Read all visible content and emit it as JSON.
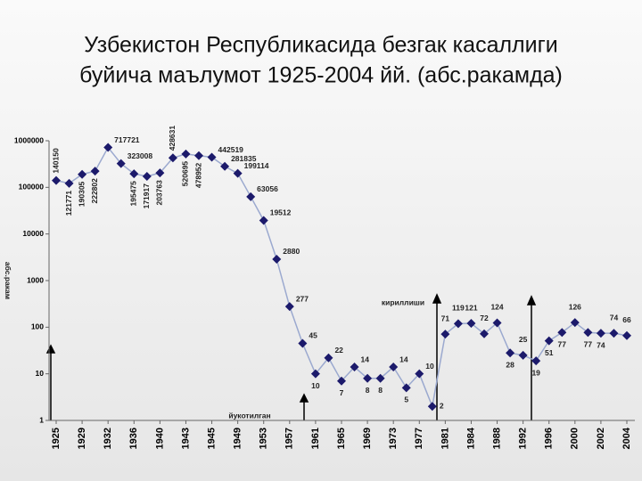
{
  "chart_data": {
    "type": "line",
    "title": "Узбекистон Республикасида безгак касаллиги",
    "subtitle": "буйича  маълумот 1925-2004 йй.  (абс.ракамда)",
    "y_label": "абс.ракам",
    "annotations": [
      "кириллиши",
      "йукотилган"
    ],
    "categories": [
      "1925",
      null,
      "1929",
      null,
      "1932",
      null,
      "1936",
      null,
      "1940",
      null,
      "1943",
      null,
      "1945",
      null,
      "1949",
      null,
      "1953",
      null,
      "1957",
      null,
      "1961",
      null,
      "1965",
      null,
      "1969",
      null,
      "1973",
      null,
      "1977",
      null,
      "1981",
      null,
      "1984",
      null,
      "1988",
      null,
      "1992",
      null,
      "1996",
      null,
      "2000",
      null,
      "2002",
      null,
      "2004"
    ],
    "series": [
      {
        "name": "безгак",
        "color": "#1c1a6b",
        "line_color": "#9ba9cf",
        "values": [
          140150,
          121771,
          190305,
          222802,
          717721,
          323008,
          195475,
          171917,
          203763,
          428631,
          520695,
          478952,
          442519,
          281835,
          199114,
          63056,
          19512,
          2880,
          277,
          45,
          10,
          22,
          7,
          14,
          8,
          8,
          14,
          5,
          10,
          2,
          71,
          119,
          121,
          72,
          124,
          28,
          25,
          19,
          51,
          77,
          126,
          77,
          74,
          74,
          66
        ]
      }
    ],
    "log_scale": true,
    "ylim": [
      1,
      1000000
    ],
    "yticks": [
      1,
      10,
      100,
      1000,
      10000,
      100000,
      1000000
    ]
  }
}
